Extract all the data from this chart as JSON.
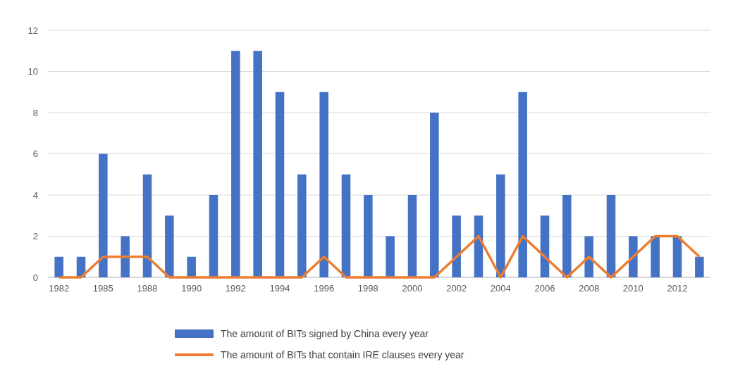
{
  "chart_data": {
    "type": "bar",
    "categories": [
      "1982",
      null,
      "1985",
      null,
      "1988",
      null,
      "1990",
      null,
      "1992",
      null,
      "1994",
      null,
      "1996",
      null,
      "1998",
      null,
      "2000",
      null,
      "2002",
      null,
      "2004",
      null,
      "2006",
      null,
      "2008",
      null,
      "2010",
      null,
      "2012",
      null
    ],
    "series": [
      {
        "name": "The amount of BITs signed by China every year",
        "color": "#4472c4",
        "values": [
          1,
          1,
          6,
          2,
          5,
          3,
          1,
          4,
          11,
          11,
          9,
          5,
          9,
          5,
          4,
          2,
          4,
          8,
          3,
          3,
          5,
          9,
          3,
          4,
          2,
          4,
          2,
          2,
          2,
          1
        ]
      },
      {
        "name": "The amount of BITs that contain IRE clauses every year",
        "type": "line",
        "color": "#ed7d31",
        "values": [
          0,
          0,
          1,
          1,
          1,
          0,
          0,
          0,
          0,
          0,
          0,
          0,
          1,
          0,
          0,
          0,
          0,
          0,
          1,
          2,
          0,
          2,
          1,
          0,
          1,
          0,
          1,
          2,
          2,
          1
        ]
      }
    ],
    "ylim": [
      0,
      12
    ],
    "yticks": [
      0,
      2,
      4,
      6,
      8,
      10,
      12
    ],
    "grid": "y",
    "legend": "bottom",
    "marker": "none",
    "line_style": "solid"
  }
}
